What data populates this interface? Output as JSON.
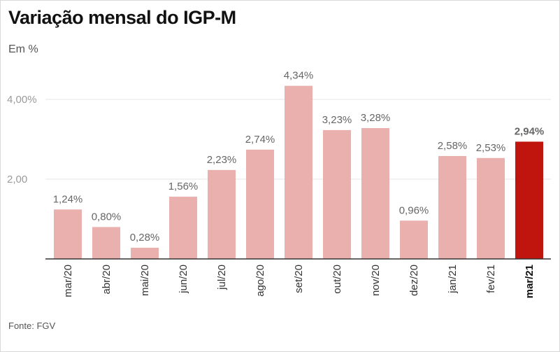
{
  "header": {
    "title": "Variação mensal do IGP-M",
    "subtitle": "Em %"
  },
  "footer": {
    "source": "Fonte: FGV"
  },
  "colors": {
    "bar": "#e9b0ae",
    "bar_highlight": "#c0150f",
    "grid": "#e6e6e6",
    "axis": "#333333"
  },
  "chart_data": {
    "type": "bar",
    "title": "Variação mensal do IGP-M",
    "subtitle": "Em %",
    "ylim": [
      0,
      5.0
    ],
    "yticks": [
      {
        "value": 2.0,
        "label": "2,00"
      },
      {
        "value": 4.0,
        "label": "4,00%"
      }
    ],
    "grid": true,
    "categories": [
      "mar/20",
      "abr/20",
      "mai/20",
      "jun/20",
      "jul/20",
      "ago/20",
      "set/20",
      "out/20",
      "nov/20",
      "dez/20",
      "jan/21",
      "fev/21",
      "mar/21"
    ],
    "values": [
      1.24,
      0.8,
      0.28,
      1.56,
      2.23,
      2.74,
      4.34,
      3.23,
      3.28,
      0.96,
      2.58,
      2.53,
      2.94
    ],
    "value_labels": [
      "1,24%",
      "0,80%",
      "0,28%",
      "1,56%",
      "2,23%",
      "2,74%",
      "4,34%",
      "3,23%",
      "3,28%",
      "0,96%",
      "2,58%",
      "2,53%",
      "2,94%"
    ],
    "highlight_index": 12,
    "source": "Fonte: FGV"
  }
}
